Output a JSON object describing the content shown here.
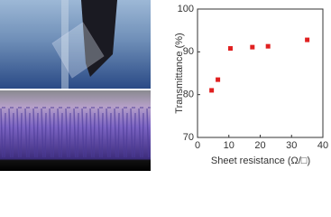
{
  "chart_data": {
    "type": "scatter",
    "x_label": "Sheet resistance (Ω/□)",
    "y_label": "Transmittance (%)",
    "x": [
      4.5,
      6.5,
      10.5,
      17.5,
      22.5,
      35
    ],
    "series": [
      {
        "color": "#e02020",
        "values": [
          81,
          83.5,
          90.8,
          91.1,
          91.3,
          92.8
        ]
      }
    ],
    "xlim": [
      0,
      40
    ],
    "xticks": [
      0,
      10,
      20,
      30,
      40
    ],
    "ylim": [
      70,
      100
    ],
    "yticks": [
      70,
      80,
      90,
      100
    ]
  }
}
